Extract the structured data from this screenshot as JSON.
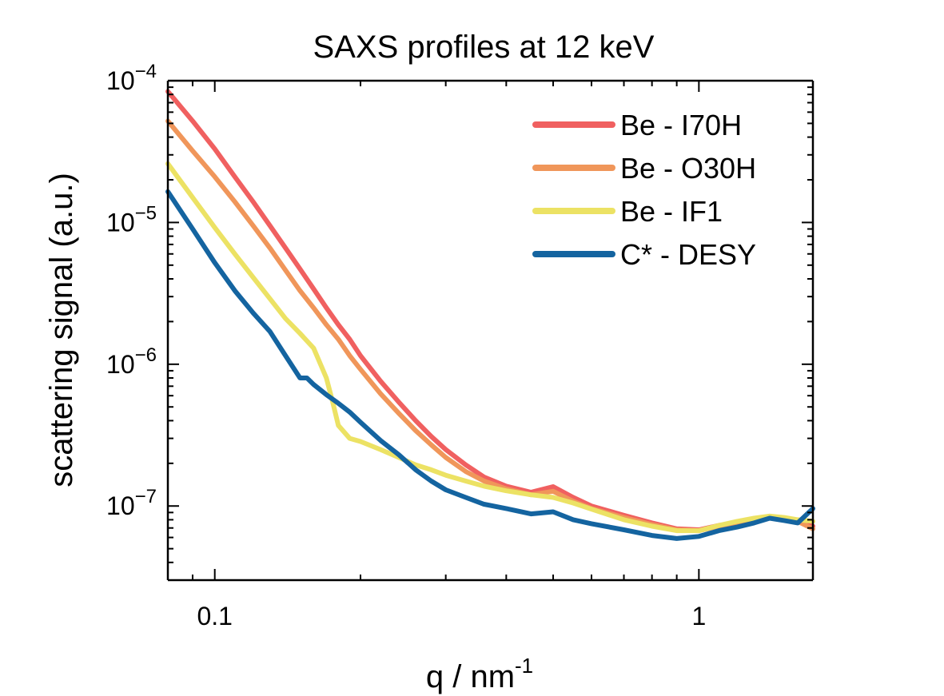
{
  "chart_data": {
    "type": "line",
    "title": "SAXS profiles at 12 keV",
    "xlabel": "q / nm",
    "xlabel_superscript": "-1",
    "ylabel": "scattering signal (a.u.)",
    "xscale": "log",
    "yscale": "log",
    "xlim": [
      0.08,
      1.72
    ],
    "ylim": [
      3e-08,
      0.0001
    ],
    "grid": false,
    "legend_position": "top-right",
    "x_ticks": [
      {
        "value": 0.1,
        "label": "0.1"
      },
      {
        "value": 1,
        "label": "1"
      }
    ],
    "y_ticks": [
      {
        "value": 1e-07,
        "base": "10",
        "exp": "−7"
      },
      {
        "value": 1e-06,
        "base": "10",
        "exp": "−6"
      },
      {
        "value": 1e-05,
        "base": "10",
        "exp": "−5"
      },
      {
        "value": 0.0001,
        "base": "10",
        "exp": "−4"
      }
    ],
    "series": [
      {
        "name": "Be - I70H",
        "color": "#f06060",
        "x": [
          0.08,
          0.09,
          0.1,
          0.11,
          0.12,
          0.13,
          0.14,
          0.15,
          0.16,
          0.17,
          0.18,
          0.19,
          0.2,
          0.22,
          0.24,
          0.26,
          0.28,
          0.3,
          0.33,
          0.36,
          0.4,
          0.45,
          0.5,
          0.55,
          0.6,
          0.7,
          0.8,
          0.9,
          1.0,
          1.1,
          1.2,
          1.3,
          1.4,
          1.5,
          1.6,
          1.72
        ],
        "y": [
          8.4e-05,
          5.2e-05,
          3.3e-05,
          2.1e-05,
          1.4e-05,
          9.5e-06,
          6.6e-06,
          4.7e-06,
          3.4e-06,
          2.5e-06,
          1.9e-06,
          1.5e-06,
          1.15e-06,
          7.6e-07,
          5.4e-07,
          4e-07,
          3.1e-07,
          2.5e-07,
          1.95e-07,
          1.6e-07,
          1.38e-07,
          1.25e-07,
          1.37e-07,
          1.15e-07,
          1e-07,
          8.6e-08,
          7.6e-08,
          6.9e-08,
          6.8e-08,
          7.3e-08,
          7.6e-08,
          8e-08,
          8.3e-08,
          8.1e-08,
          7.8e-08,
          7.2e-08
        ]
      },
      {
        "name": "Be - O30H",
        "color": "#f0965a",
        "x": [
          0.08,
          0.09,
          0.1,
          0.11,
          0.12,
          0.13,
          0.14,
          0.15,
          0.16,
          0.17,
          0.18,
          0.19,
          0.2,
          0.22,
          0.24,
          0.26,
          0.28,
          0.3,
          0.33,
          0.36,
          0.4,
          0.45,
          0.5,
          0.55,
          0.6,
          0.7,
          0.8,
          0.9,
          1.0,
          1.1,
          1.2,
          1.3,
          1.4,
          1.5,
          1.6,
          1.72
        ],
        "y": [
          5.2e-05,
          3.2e-05,
          2.1e-05,
          1.4e-05,
          9.5e-06,
          6.6e-06,
          4.6e-06,
          3.3e-06,
          2.5e-06,
          1.9e-06,
          1.5e-06,
          1.15e-06,
          9.2e-07,
          6.2e-07,
          4.5e-07,
          3.4e-07,
          2.7e-07,
          2.2e-07,
          1.75e-07,
          1.5e-07,
          1.32e-07,
          1.2e-07,
          1.27e-07,
          1.08e-07,
          9.6e-08,
          8.3e-08,
          7.4e-08,
          6.8e-08,
          6.7e-08,
          7.2e-08,
          7.6e-08,
          8e-08,
          8.3e-08,
          8.1e-08,
          7.8e-08,
          6.9e-08
        ]
      },
      {
        "name": "Be - IF1",
        "color": "#ece264",
        "x": [
          0.08,
          0.09,
          0.1,
          0.11,
          0.12,
          0.13,
          0.14,
          0.15,
          0.16,
          0.17,
          0.175,
          0.18,
          0.19,
          0.2,
          0.22,
          0.24,
          0.26,
          0.28,
          0.3,
          0.33,
          0.36,
          0.4,
          0.45,
          0.5,
          0.55,
          0.6,
          0.7,
          0.8,
          0.9,
          1.0,
          1.1,
          1.2,
          1.3,
          1.4,
          1.5,
          1.6,
          1.72
        ],
        "y": [
          2.6e-05,
          1.5e-05,
          9.2e-06,
          6e-06,
          4.1e-06,
          2.9e-06,
          2.1e-06,
          1.65e-06,
          1.3e-06,
          8e-07,
          5.5e-07,
          3.7e-07,
          3e-07,
          2.85e-07,
          2.5e-07,
          2.2e-07,
          1.95e-07,
          1.8e-07,
          1.65e-07,
          1.5e-07,
          1.38e-07,
          1.28e-07,
          1.2e-07,
          1.15e-07,
          1.05e-07,
          9.5e-08,
          8e-08,
          7.2e-08,
          6.7e-08,
          6.7e-08,
          7.3e-08,
          7.8e-08,
          8.2e-08,
          8.5e-08,
          8.3e-08,
          8e-08,
          7.8e-08
        ]
      },
      {
        "name": "C* - DESY",
        "color": "#1464a0",
        "x": [
          0.08,
          0.09,
          0.1,
          0.11,
          0.12,
          0.13,
          0.14,
          0.15,
          0.155,
          0.16,
          0.17,
          0.18,
          0.19,
          0.2,
          0.22,
          0.24,
          0.26,
          0.28,
          0.3,
          0.33,
          0.36,
          0.4,
          0.45,
          0.5,
          0.55,
          0.6,
          0.7,
          0.8,
          0.9,
          1.0,
          1.1,
          1.2,
          1.3,
          1.4,
          1.5,
          1.6,
          1.72
        ],
        "y": [
          1.65e-05,
          9e-06,
          5.2e-06,
          3.3e-06,
          2.3e-06,
          1.7e-06,
          1.15e-06,
          8e-07,
          8e-07,
          7.2e-07,
          6.1e-07,
          5.3e-07,
          4.6e-07,
          3.9e-07,
          2.9e-07,
          2.3e-07,
          1.8e-07,
          1.5e-07,
          1.3e-07,
          1.15e-07,
          1.03e-07,
          9.6e-08,
          8.8e-08,
          9.1e-08,
          8e-08,
          7.5e-08,
          6.8e-08,
          6.2e-08,
          5.9e-08,
          6.1e-08,
          6.7e-08,
          7.1e-08,
          7.6e-08,
          8.2e-08,
          7.9e-08,
          7.6e-08,
          9.6e-08
        ]
      }
    ]
  }
}
